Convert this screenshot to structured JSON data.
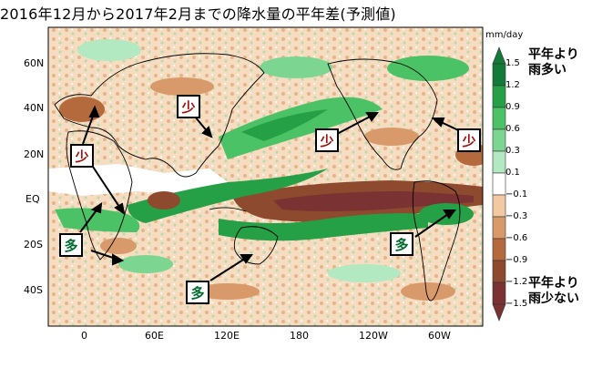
{
  "title": "2016年12月から2017年2月までの降水量の平年差(予測値)",
  "map": {
    "lat_labels": [
      "60N",
      "40N",
      "20N",
      "EQ",
      "20S",
      "40S"
    ],
    "lon_labels": [
      "0",
      "60E",
      "120E",
      "180",
      "120W",
      "60W"
    ]
  },
  "legend": {
    "unit": "mm/day",
    "levels": [
      "1.5",
      "1.2",
      "0.9",
      "0.6",
      "0.3",
      "0.1",
      "−0.1",
      "−0.3",
      "−0.6",
      "−0.9",
      "−1.2",
      "−1.5"
    ],
    "wet_label_line1": "平年より",
    "wet_label_line2": "雨多い",
    "dry_label_line1": "平年より",
    "dry_label_line2": "雨少ない",
    "colors": [
      "#137a3a",
      "#26a047",
      "#4cc267",
      "#7cd691",
      "#b3e9c0",
      "#ffffff",
      "#f2c9a2",
      "#d89a6a",
      "#b56a3e",
      "#8e4a2e",
      "#7a3232"
    ]
  },
  "annotations": [
    {
      "text": "少",
      "kind": "dry"
    },
    {
      "text": "少",
      "kind": "dry"
    },
    {
      "text": "多",
      "kind": "wet"
    },
    {
      "text": "多",
      "kind": "wet"
    },
    {
      "text": "少",
      "kind": "dry"
    },
    {
      "text": "少",
      "kind": "dry"
    },
    {
      "text": "多",
      "kind": "wet"
    }
  ]
}
